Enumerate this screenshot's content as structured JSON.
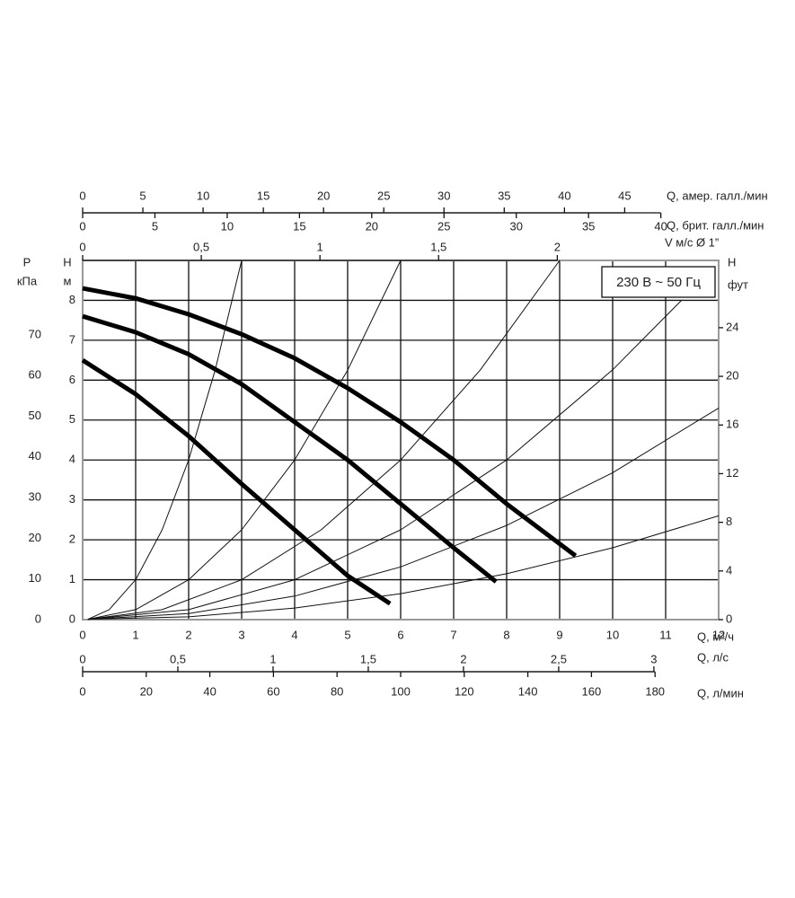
{
  "chart_data": {
    "type": "line",
    "legend_box": "230 В ~ 50 Гц",
    "xlabel": "Q, м³/ч",
    "xlim": [
      0,
      12
    ],
    "xticks": [
      0,
      1,
      2,
      3,
      4,
      5,
      6,
      7,
      8,
      9,
      10,
      11,
      12
    ],
    "ylabel": "H",
    "ylabel_unit": "м",
    "ylim": [
      0,
      9
    ],
    "yticks": [
      0,
      1,
      2,
      3,
      4,
      5,
      6,
      7,
      8
    ],
    "y2label": "H",
    "y2label_unit": "фут",
    "y2lim": [
      0,
      29.53
    ],
    "y2ticks": [
      0,
      4,
      8,
      12,
      16,
      20,
      24
    ],
    "y3label": "P",
    "y3label_unit": "кПа",
    "y3lim": [
      0,
      88.3
    ],
    "y3ticks": [
      0,
      10,
      20,
      30,
      40,
      50,
      60,
      70
    ],
    "grid": true,
    "extra_x_axes": [
      {
        "label": "Q, амер. галл./мин",
        "lim": [
          0,
          52.8
        ],
        "ticks": [
          0,
          5,
          10,
          15,
          20,
          25,
          30,
          35,
          40,
          45
        ]
      },
      {
        "label": "Q, брит. галл./мин",
        "lim": [
          0,
          44
        ],
        "ticks": [
          0,
          5,
          10,
          15,
          20,
          25,
          30,
          35,
          40
        ]
      },
      {
        "label": "V м/с Ø 1”",
        "lim": [
          0,
          2.68
        ],
        "ticks": [
          0,
          {
            "value": 0.5,
            "label": "0,5"
          },
          1,
          {
            "value": 1.5,
            "label": "1,5"
          },
          2
        ]
      },
      {
        "label": "Q, л/с",
        "lim": [
          0,
          3.34
        ],
        "ticks": [
          0,
          {
            "value": 0.5,
            "label": "0,5"
          },
          1,
          {
            "value": 1.5,
            "label": "1,5"
          },
          2,
          {
            "value": 2.5,
            "label": "2,5"
          },
          3
        ]
      },
      {
        "label": "Q, л/мин",
        "lim": [
          0,
          200
        ],
        "ticks": [
          0,
          20,
          40,
          60,
          80,
          100,
          120,
          140,
          160,
          180
        ]
      }
    ],
    "series": [
      {
        "color": "#000",
        "line_width": 5,
        "x": [
          0,
          1,
          2,
          3,
          4,
          5,
          5.8
        ],
        "values": [
          6.5,
          5.65,
          4.6,
          3.4,
          2.25,
          1.1,
          0.4
        ]
      },
      {
        "color": "#000",
        "line_width": 5,
        "x": [
          0,
          1,
          2,
          3,
          4,
          5,
          6,
          7,
          7.8
        ],
        "values": [
          7.6,
          7.2,
          6.65,
          5.9,
          4.95,
          4.0,
          2.9,
          1.8,
          0.95
        ]
      },
      {
        "color": "#000",
        "line_width": 5,
        "x": [
          0,
          1,
          2,
          3,
          4,
          5,
          6,
          7,
          8,
          9.3
        ],
        "values": [
          8.3,
          8.05,
          7.65,
          7.15,
          6.55,
          5.8,
          4.95,
          4.0,
          2.9,
          1.6
        ]
      },
      {
        "color": "#111",
        "line_width": 1,
        "x": [
          0.1,
          0.5,
          1,
          1.5,
          2,
          2.5,
          3
        ],
        "values": [
          0.01,
          0.25,
          1,
          2.25,
          4,
          6.25,
          9
        ]
      },
      {
        "color": "#111",
        "line_width": 1,
        "x": [
          0.1,
          1,
          2,
          3,
          4,
          5,
          6
        ],
        "values": [
          0.01,
          0.25,
          1,
          2.25,
          4,
          6.25,
          9
        ]
      },
      {
        "color": "#111",
        "line_width": 1,
        "x": [
          0.1,
          1.5,
          3,
          4.5,
          6,
          7.5,
          9
        ],
        "values": [
          0.01,
          0.25,
          1,
          2.25,
          4,
          6.25,
          9
        ]
      },
      {
        "color": "#111",
        "line_width": 1,
        "x": [
          0.1,
          2,
          4,
          6,
          8,
          10,
          11.3
        ],
        "values": [
          0.01,
          0.25,
          1,
          2.25,
          4,
          6.26,
          8
        ]
      },
      {
        "color": "#111",
        "line_width": 1,
        "x": [
          0.1,
          2,
          4,
          6,
          8,
          10,
          12
        ],
        "values": [
          0.01,
          0.15,
          0.59,
          1.32,
          2.36,
          3.68,
          5.3
        ]
      },
      {
        "color": "#111",
        "line_width": 1,
        "x": [
          0.1,
          2,
          4,
          6,
          8,
          10,
          12
        ],
        "values": [
          0.01,
          0.07,
          0.29,
          0.65,
          1.15,
          1.8,
          2.6
        ]
      }
    ]
  }
}
